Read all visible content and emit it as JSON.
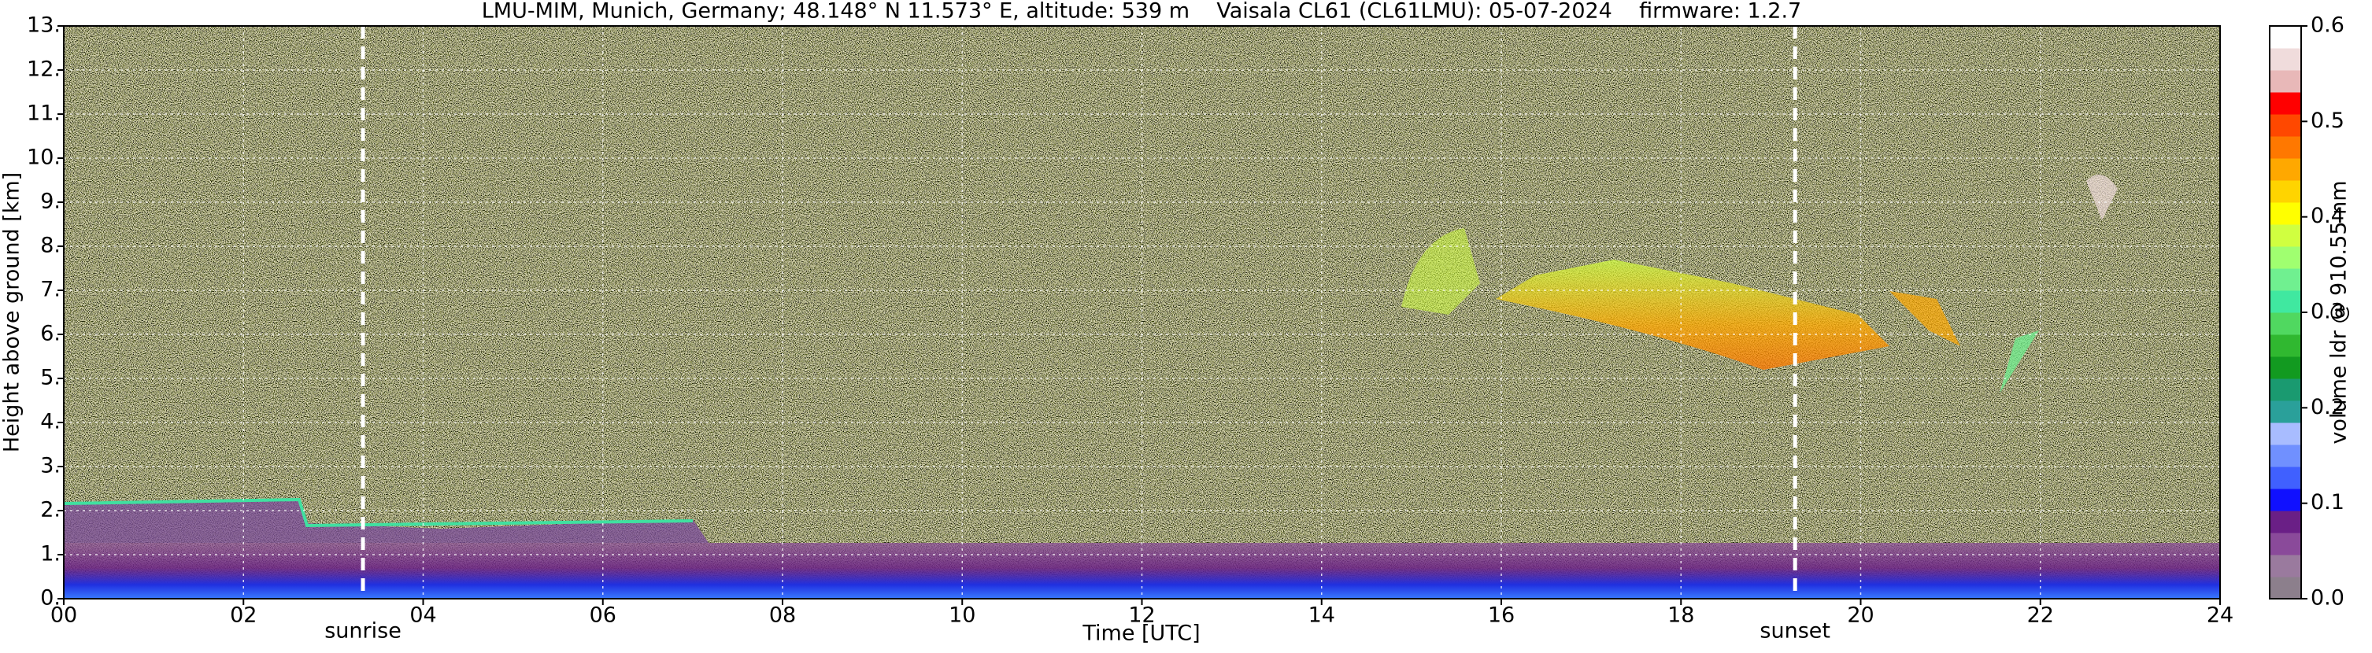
{
  "chart_data": {
    "type": "heatmap",
    "title": "LMU-MIM, Munich, Germany; 48.148° N 11.573° E, altitude: 539 m    Vaisala CL61 (CL61LMU): 05-07-2024    firmware: 1.2.7",
    "xlabel": "Time [UTC]",
    "ylabel": "Height above ground [km]",
    "xlim": [
      0,
      24
    ],
    "xticks": [
      {
        "value": 0,
        "label": "00"
      },
      {
        "value": 2,
        "label": "02"
      },
      {
        "value": 4,
        "label": "04"
      },
      {
        "value": 6,
        "label": "06"
      },
      {
        "value": 8,
        "label": "08"
      },
      10,
      12,
      14,
      16,
      18,
      20,
      22,
      24
    ],
    "ylim": [
      0,
      13
    ],
    "yticks": [
      {
        "value": 0,
        "label": "0."
      },
      {
        "value": 1,
        "label": "1."
      },
      {
        "value": 2,
        "label": "2."
      },
      {
        "value": 3,
        "label": "3."
      },
      {
        "value": 4,
        "label": "4."
      },
      {
        "value": 5,
        "label": "5."
      },
      {
        "value": 6,
        "label": "6."
      },
      {
        "value": 7,
        "label": "7."
      },
      {
        "value": 8,
        "label": "8."
      },
      {
        "value": 9,
        "label": "9."
      },
      {
        "value": 10,
        "label": "10."
      },
      {
        "value": 11,
        "label": "11."
      },
      {
        "value": 12,
        "label": "12."
      },
      {
        "value": 13,
        "label": "13."
      }
    ],
    "grid": true,
    "annotations": [
      {
        "text": "sunrise",
        "x": 3.33
      },
      {
        "text": "sunset",
        "x": 19.27
      }
    ],
    "colorbar": {
      "label": "volume ldr @ 910.55 nm",
      "lim": [
        0,
        0.6
      ],
      "ticks": [
        {
          "value": 0,
          "label": "0.0"
        },
        0.1,
        0.2,
        0.3,
        0.4,
        0.5,
        0.6
      ],
      "colors": [
        "#8c7f8c",
        "#9a7a9e",
        "#8a4a9a",
        "#6a1f86",
        "#1010ff",
        "#4060ff",
        "#7090ff",
        "#a8bcff",
        "#2aa09a",
        "#1a9a70",
        "#129a20",
        "#30b830",
        "#50d860",
        "#40e8a0",
        "#70f090",
        "#a0ff70",
        "#d0ff40",
        "#ffff00",
        "#ffd400",
        "#ffa800",
        "#ff7800",
        "#ff4800",
        "#ff0000",
        "#e8b8b8",
        "#f0dcdc",
        "#ffffff"
      ]
    }
  }
}
